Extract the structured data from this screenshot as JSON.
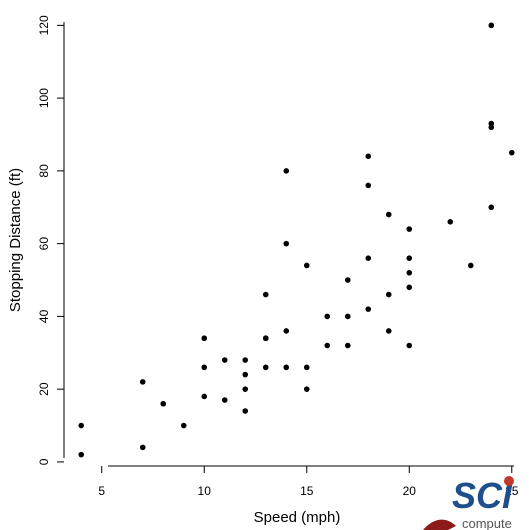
{
  "chart_data": {
    "type": "scatter",
    "title": "",
    "xlabel": "Speed (mph)",
    "ylabel": "Stopping Distance (ft)",
    "xlim": [
      3.16,
      25.84
    ],
    "ylim": [
      -1.12,
      123.12
    ],
    "x_ticks": [
      5,
      10,
      15,
      20,
      25
    ],
    "y_ticks": [
      0,
      20,
      40,
      60,
      80,
      100,
      120
    ],
    "x_tick_labels": [
      "5",
      "10",
      "15",
      "20",
      "25"
    ],
    "y_tick_labels": [
      "0",
      "20",
      "40",
      "60",
      "80",
      "100",
      "120"
    ],
    "grid": false,
    "point_color": "#000000",
    "points": [
      [
        4,
        2
      ],
      [
        4,
        10
      ],
      [
        7,
        4
      ],
      [
        7,
        22
      ],
      [
        8,
        16
      ],
      [
        9,
        10
      ],
      [
        10,
        18
      ],
      [
        10,
        26
      ],
      [
        10,
        34
      ],
      [
        11,
        17
      ],
      [
        11,
        28
      ],
      [
        12,
        14
      ],
      [
        12,
        20
      ],
      [
        12,
        24
      ],
      [
        12,
        28
      ],
      [
        13,
        26
      ],
      [
        13,
        34
      ],
      [
        13,
        34
      ],
      [
        13,
        46
      ],
      [
        14,
        26
      ],
      [
        14,
        36
      ],
      [
        14,
        60
      ],
      [
        14,
        80
      ],
      [
        15,
        20
      ],
      [
        15,
        26
      ],
      [
        15,
        54
      ],
      [
        16,
        32
      ],
      [
        16,
        40
      ],
      [
        17,
        32
      ],
      [
        17,
        40
      ],
      [
        17,
        50
      ],
      [
        18,
        42
      ],
      [
        18,
        56
      ],
      [
        18,
        76
      ],
      [
        18,
        84
      ],
      [
        19,
        36
      ],
      [
        19,
        46
      ],
      [
        19,
        68
      ],
      [
        20,
        32
      ],
      [
        20,
        48
      ],
      [
        20,
        52
      ],
      [
        20,
        56
      ],
      [
        20,
        64
      ],
      [
        22,
        66
      ],
      [
        23,
        54
      ],
      [
        24,
        70
      ],
      [
        24,
        92
      ],
      [
        24,
        93
      ],
      [
        24,
        120
      ],
      [
        25,
        85
      ]
    ]
  },
  "logo": {
    "name": "SCI",
    "subtext": "compute",
    "primary_color": "#1f4e8c",
    "accent_color": "#c0392b"
  }
}
